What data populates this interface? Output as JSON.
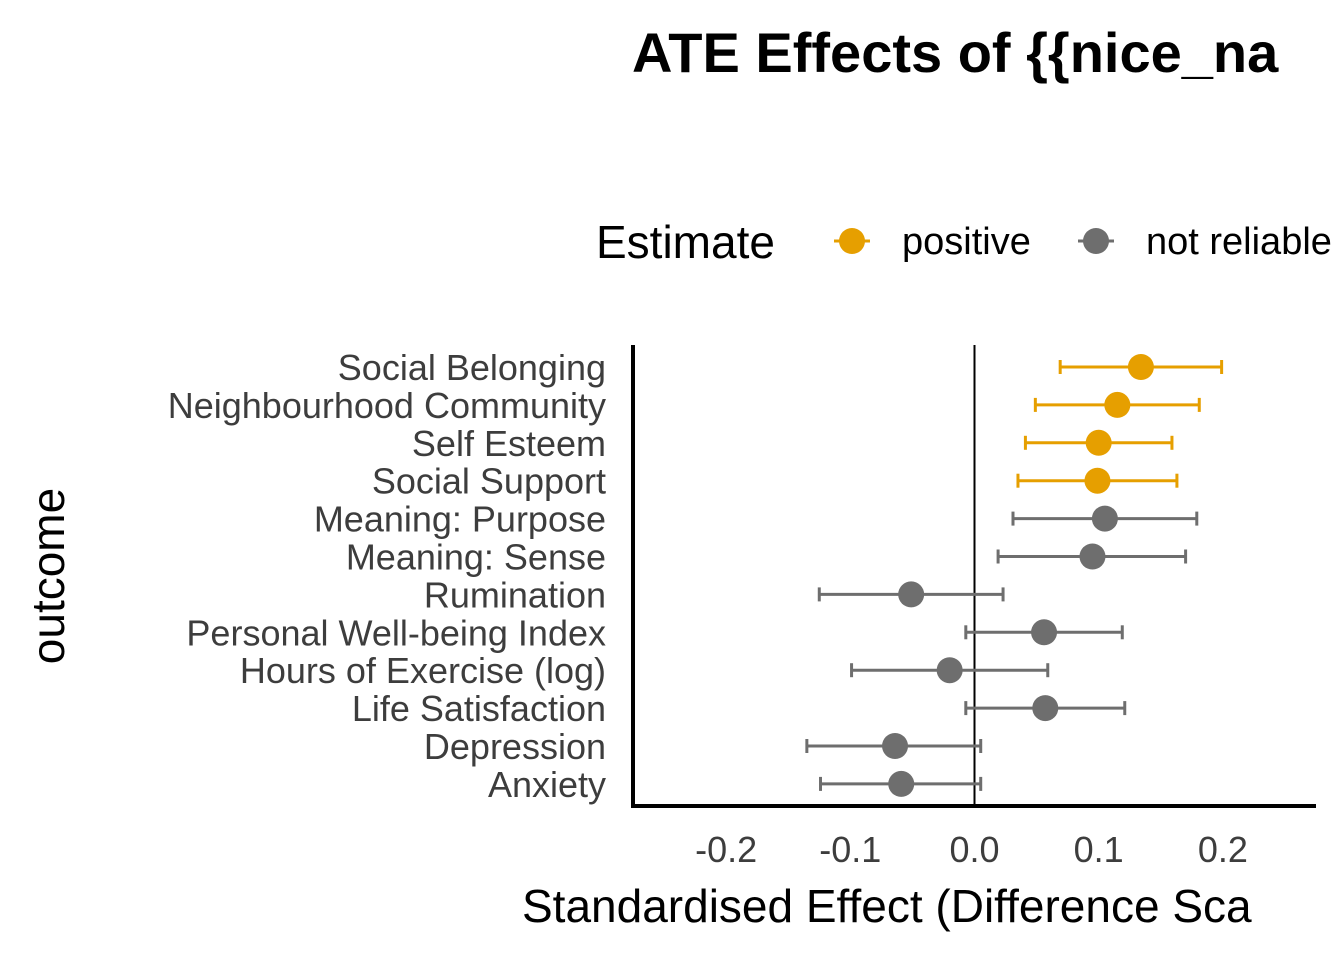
{
  "chart_data": {
    "type": "forest",
    "title": "ATE Effects of {{nice_na",
    "xlabel": "Standardised Effect (Difference Sca",
    "ylabel": "outcome",
    "xlim": [
      -0.275,
      0.275
    ],
    "xticks": [
      -0.2,
      -0.1,
      0.0,
      0.1,
      0.2
    ],
    "xtick_labels": [
      "-0.2",
      "-0.1",
      "0.0",
      "0.1",
      "0.2"
    ],
    "reference_line": 0.0,
    "grid": false,
    "legend": {
      "title": "Estimate",
      "position": "top",
      "entries": [
        {
          "label": "positive",
          "color": "#E69F00"
        },
        {
          "label": "not reliable",
          "color": "#6E6E6E"
        }
      ]
    },
    "categories": [
      "Social Belonging",
      "Neighbourhood Community",
      "Self Esteem",
      "Social Support",
      "Meaning: Purpose",
      "Meaning: Sense",
      "Rumination",
      "Personal Well-being Index",
      "Hours of Exercise (log)",
      "Life Satisfaction",
      "Depression",
      "Anxiety"
    ],
    "estimates": [
      {
        "outcome": "Social Belonging",
        "estimate": 0.134,
        "lower": 0.069,
        "upper": 0.199,
        "group": "positive"
      },
      {
        "outcome": "Neighbourhood Community",
        "estimate": 0.115,
        "lower": 0.049,
        "upper": 0.181,
        "group": "positive"
      },
      {
        "outcome": "Self Esteem",
        "estimate": 0.1,
        "lower": 0.041,
        "upper": 0.159,
        "group": "positive"
      },
      {
        "outcome": "Social Support",
        "estimate": 0.099,
        "lower": 0.035,
        "upper": 0.163,
        "group": "positive"
      },
      {
        "outcome": "Meaning: Purpose",
        "estimate": 0.105,
        "lower": 0.031,
        "upper": 0.179,
        "group": "not reliable"
      },
      {
        "outcome": "Meaning: Sense",
        "estimate": 0.095,
        "lower": 0.019,
        "upper": 0.17,
        "group": "not reliable"
      },
      {
        "outcome": "Rumination",
        "estimate": -0.051,
        "lower": -0.125,
        "upper": 0.023,
        "group": "not reliable"
      },
      {
        "outcome": "Personal Well-being Index",
        "estimate": 0.056,
        "lower": -0.007,
        "upper": 0.119,
        "group": "not reliable"
      },
      {
        "outcome": "Hours of Exercise (log)",
        "estimate": -0.02,
        "lower": -0.099,
        "upper": 0.059,
        "group": "not reliable"
      },
      {
        "outcome": "Life Satisfaction",
        "estimate": 0.057,
        "lower": -0.007,
        "upper": 0.121,
        "group": "not reliable"
      },
      {
        "outcome": "Depression",
        "estimate": -0.064,
        "lower": -0.135,
        "upper": 0.005,
        "group": "not reliable"
      },
      {
        "outcome": "Anxiety",
        "estimate": -0.059,
        "lower": -0.124,
        "upper": 0.005,
        "group": "not reliable"
      }
    ]
  }
}
